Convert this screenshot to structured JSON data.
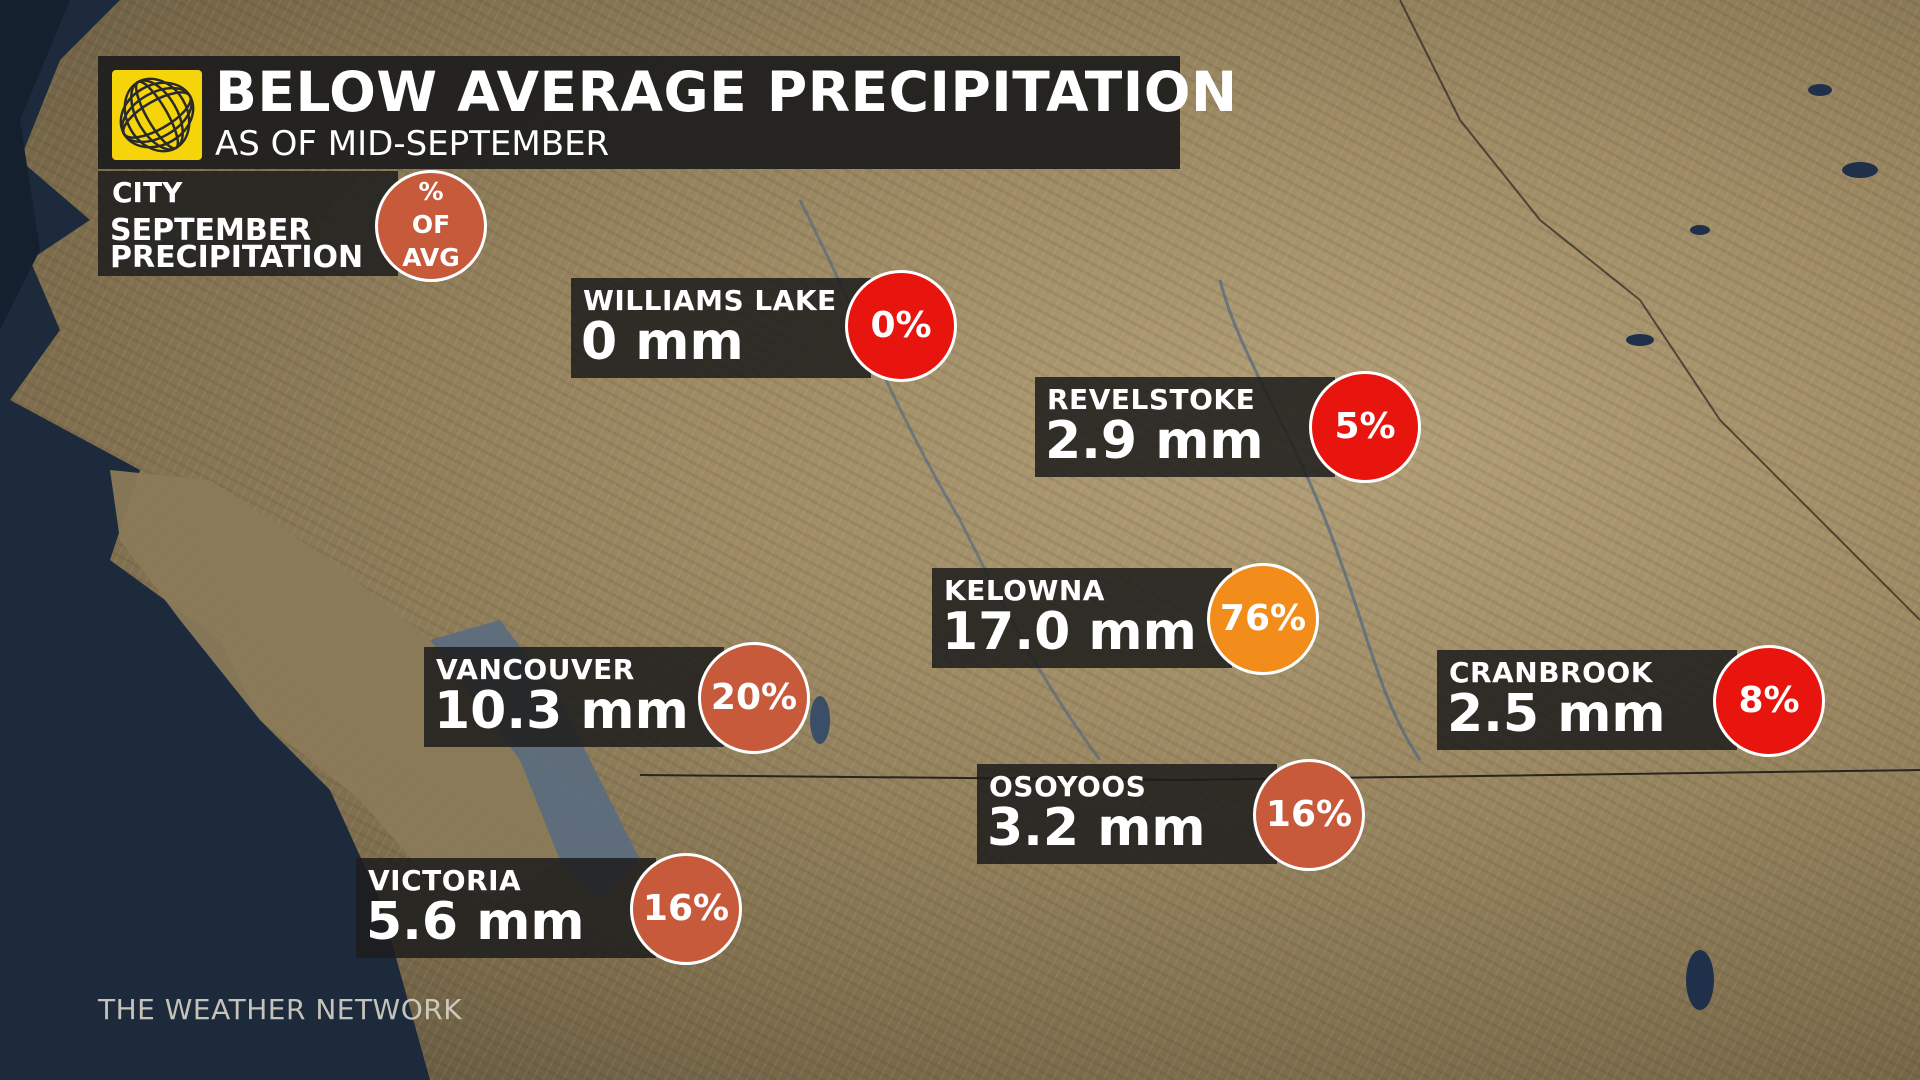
{
  "title": {
    "main": "BELOW AVERAGE PRECIPITATION",
    "sub": "AS OF MID-SEPTEMBER"
  },
  "logo": {
    "icon": "weather-network-logo-icon",
    "color": "#f5d50a"
  },
  "legend": {
    "city": "CITY",
    "line1": "SEPTEMBER",
    "line2": "PRECIPITATION",
    "circle_line1": "%",
    "circle_line2": "OF",
    "circle_line3": "AVG",
    "circle_color": "#c85a3c"
  },
  "colors": {
    "deep_red": "#e8140e",
    "orange": "#f28c1a",
    "rust": "#c85a3c"
  },
  "cities": [
    {
      "name": "WILLIAMS LAKE",
      "amount": "0 mm",
      "pct": "0%",
      "pct_value": 0,
      "color": "#e8140e"
    },
    {
      "name": "REVELSTOKE",
      "amount": "2.9 mm",
      "pct": "5%",
      "pct_value": 5,
      "color": "#e8140e"
    },
    {
      "name": "KELOWNA",
      "amount": "17.0 mm",
      "pct": "76%",
      "pct_value": 76,
      "color": "#f28c1a"
    },
    {
      "name": "VANCOUVER",
      "amount": "10.3 mm",
      "pct": "20%",
      "pct_value": 20,
      "color": "#c85a3c"
    },
    {
      "name": "CRANBROOK",
      "amount": "2.5 mm",
      "pct": "8%",
      "pct_value": 8,
      "color": "#e8140e"
    },
    {
      "name": "OSOYOOS",
      "amount": "3.2 mm",
      "pct": "16%",
      "pct_value": 16,
      "color": "#c85a3c"
    },
    {
      "name": "VICTORIA",
      "amount": "5.6 mm",
      "pct": "16%",
      "pct_value": 16,
      "color": "#c85a3c"
    }
  ],
  "watermark": "THE WEATHER NETWORK"
}
